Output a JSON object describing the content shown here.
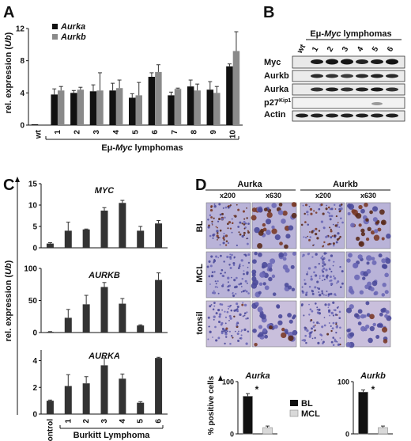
{
  "panels": {
    "A": {
      "letter": "A",
      "legend": [
        "Aurka",
        "Aurkb"
      ],
      "ylabel_prefix": "rel. expression (",
      "ylabel_unit": "Ub",
      "ylabel_suffix": ")",
      "group_label_prefix": "Eμ-",
      "group_label_italic": "Myc",
      "group_label_suffix": " lymphomas"
    },
    "B": {
      "letter": "B",
      "header_prefix": "Eμ-",
      "header_italic": "Myc",
      "header_suffix": " lymphomas",
      "lanes": [
        "wt",
        "1",
        "2",
        "3",
        "4",
        "5",
        "6"
      ],
      "rows": [
        "Myc",
        "Aurkb",
        "Aurka",
        "p27",
        "Actin"
      ],
      "p27_sup": "Kip1"
    },
    "C": {
      "letter": "C",
      "ylabel_prefix": "rel. expression (",
      "ylabel_unit": "Ub",
      "ylabel_suffix": ")",
      "group_label": "Burkitt Lymphoma"
    },
    "D": {
      "letter": "D",
      "col_groups": [
        "Aurka",
        "Aurkb"
      ],
      "magnifications": [
        "x200",
        "x630",
        "x200",
        "x630"
      ],
      "row_labels": [
        "BL",
        "MCL",
        "tonsil"
      ],
      "ylabel": "% positive cells",
      "legend": [
        "BL",
        "MCL"
      ],
      "significance": "*"
    }
  },
  "chart_data": [
    {
      "id": "A",
      "type": "bar",
      "categories": [
        "wt",
        "1",
        "2",
        "3",
        "4",
        "5",
        "6",
        "7",
        "8",
        "9",
        "10"
      ],
      "series": [
        {
          "name": "Aurka",
          "color": "#111111",
          "values": [
            0.1,
            3.8,
            4.0,
            4.2,
            4.3,
            3.4,
            6.0,
            3.7,
            4.8,
            4.4,
            7.3
          ],
          "errors": [
            0,
            0.7,
            0.3,
            0.8,
            0.9,
            0.5,
            0.5,
            0.4,
            0.8,
            1.0,
            0.3
          ]
        },
        {
          "name": "Aurkb",
          "color": "#8a8a8a",
          "values": [
            0.1,
            4.3,
            4.4,
            4.3,
            4.6,
            3.7,
            6.6,
            4.5,
            4.3,
            4.0,
            9.2
          ],
          "errors": [
            0,
            0.5,
            0.3,
            2.2,
            1.0,
            1.6,
            0.9,
            0.1,
            0.8,
            0.8,
            2.4
          ]
        }
      ],
      "ylim": [
        0,
        12
      ],
      "yticks": [
        "0",
        "4",
        "8",
        "12"
      ]
    },
    {
      "id": "C-MYC",
      "type": "bar",
      "title": "MYC",
      "categories": [
        "control",
        "1",
        "2",
        "3",
        "4",
        "5",
        "6"
      ],
      "values": [
        1.0,
        4.0,
        4.3,
        8.7,
        10.5,
        4.0,
        5.7
      ],
      "errors": [
        0.2,
        2.0,
        0.1,
        0.7,
        0.6,
        1.0,
        0.7
      ],
      "ylim": [
        0,
        15
      ],
      "yticks": [
        "0",
        "5",
        "10",
        "15"
      ]
    },
    {
      "id": "C-AURKB",
      "type": "bar",
      "title": "AURKB",
      "categories": [
        "control",
        "1",
        "2",
        "3",
        "4",
        "5",
        "6"
      ],
      "values": [
        1,
        23,
        44,
        71,
        45,
        11,
        82
      ],
      "errors": [
        0.5,
        13,
        14,
        7,
        8,
        1,
        11
      ],
      "ylim": [
        0,
        100
      ],
      "yticks": [
        "0",
        "50",
        "100"
      ]
    },
    {
      "id": "C-AURKA",
      "type": "bar",
      "title": "AURKA",
      "categories": [
        "control",
        "1",
        "2",
        "3",
        "4",
        "5",
        "6"
      ],
      "values": [
        1.0,
        2.1,
        2.3,
        3.65,
        2.65,
        0.85,
        4.2
      ],
      "errors": [
        0.05,
        0.85,
        0.5,
        0.55,
        0.35,
        0.08,
        0.05
      ],
      "ylim": [
        0,
        4.8
      ],
      "yticks": [
        "0",
        "2",
        "4"
      ]
    },
    {
      "id": "D-Aurka",
      "type": "bar",
      "title": "Aurka",
      "categories": [
        "BL",
        "MCL"
      ],
      "values": [
        72,
        12
      ],
      "errors": [
        5,
        3
      ],
      "ylim": [
        0,
        100
      ],
      "yticks": [
        "0",
        "100"
      ]
    },
    {
      "id": "D-Aurkb",
      "type": "bar",
      "title": "Aurkb",
      "categories": [
        "BL",
        "MCL"
      ],
      "values": [
        80,
        12
      ],
      "errors": [
        4,
        3
      ],
      "ylim": [
        0,
        100
      ],
      "yticks": [
        "0",
        "100"
      ]
    }
  ]
}
